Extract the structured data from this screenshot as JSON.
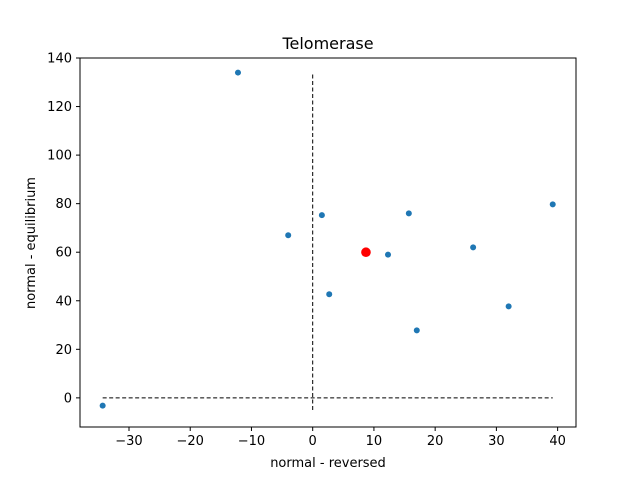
{
  "chart_data": {
    "type": "scatter",
    "title": "Telomerase",
    "xlabel": "normal - reversed",
    "ylabel": "normal - equilibrium",
    "xlim": [
      -38,
      43
    ],
    "ylim": [
      -12,
      140
    ],
    "xticks": [
      -30,
      -20,
      -10,
      0,
      10,
      20,
      30,
      40
    ],
    "yticks": [
      0,
      20,
      40,
      60,
      80,
      100,
      120,
      140
    ],
    "xtick_labels": [
      "−30",
      "−20",
      "−10",
      "0",
      "10",
      "20",
      "30",
      "40"
    ],
    "ytick_labels": [
      "0",
      "20",
      "40",
      "60",
      "80",
      "100",
      "120",
      "140"
    ],
    "grid": false,
    "series": [
      {
        "color": "#1f77b4",
        "points": [
          {
            "x": -34.3,
            "y": -3.2
          },
          {
            "x": -12.2,
            "y": 134.0
          },
          {
            "x": -4.0,
            "y": 67.0
          },
          {
            "x": 1.5,
            "y": 75.3
          },
          {
            "x": 2.7,
            "y": 42.7
          },
          {
            "x": 12.3,
            "y": 59.0
          },
          {
            "x": 15.7,
            "y": 76.0
          },
          {
            "x": 17.0,
            "y": 27.8
          },
          {
            "x": 26.2,
            "y": 62.0
          },
          {
            "x": 32.0,
            "y": 37.7
          },
          {
            "x": 39.2,
            "y": 79.7
          }
        ]
      }
    ],
    "highlight": {
      "x": 8.7,
      "y": 60.0,
      "color": "#ff0000"
    },
    "reference_lines": {
      "vertical": {
        "x": 0,
        "y_from": -5,
        "y_to": 134
      },
      "horizontal": {
        "y": 0,
        "x_from": -34.3,
        "x_to": 39.2
      },
      "color": "#000000",
      "style": "dashed"
    }
  }
}
